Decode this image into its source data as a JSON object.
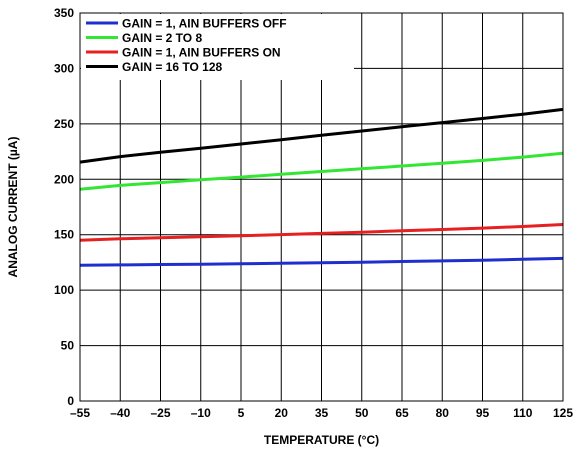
{
  "chart_data": {
    "type": "line",
    "title": "",
    "xlabel": "TEMPERATURE (°C)",
    "ylabel": "ANALOG CURRENT (µA)",
    "x_ticks": [
      "–55",
      "–40",
      "–25",
      "–10",
      "5",
      "20",
      "35",
      "50",
      "65",
      "80",
      "95",
      "110",
      "125"
    ],
    "x_tick_values": [
      -55,
      -40,
      -25,
      -10,
      5,
      20,
      35,
      50,
      65,
      80,
      95,
      110,
      125
    ],
    "y_ticks": [
      0,
      50,
      100,
      150,
      200,
      250,
      300,
      350
    ],
    "xlim": [
      -55,
      125
    ],
    "ylim": [
      0,
      350
    ],
    "grid": true,
    "legend_position": "top-left",
    "series": [
      {
        "name": "GAIN = 1, AIN BUFFERS OFF",
        "color": "#1f2fcf",
        "x": [
          -55,
          -40,
          -25,
          -10,
          5,
          20,
          35,
          50,
          65,
          80,
          95,
          110,
          125
        ],
        "y": [
          122.5,
          122.8,
          123.1,
          123.4,
          123.8,
          124.2,
          124.7,
          125.2,
          125.8,
          126.4,
          127.0,
          127.8,
          128.6
        ]
      },
      {
        "name": "GAIN = 2 TO 8",
        "color": "#33e633",
        "x": [
          -55,
          -40,
          -25,
          -10,
          5,
          20,
          35,
          50,
          65,
          80,
          95,
          110,
          125
        ],
        "y": [
          191.0,
          194.5,
          197.0,
          199.5,
          202.0,
          204.5,
          207.0,
          209.5,
          212.0,
          214.5,
          217.0,
          220.0,
          223.5
        ]
      },
      {
        "name": "GAIN = 1, AIN BUFFERS ON",
        "color": "#e62020",
        "x": [
          -55,
          -40,
          -25,
          -10,
          5,
          20,
          35,
          50,
          65,
          80,
          95,
          110,
          125
        ],
        "y": [
          145.0,
          146.3,
          147.3,
          148.2,
          149.1,
          150.1,
          151.2,
          152.3,
          153.5,
          154.7,
          156.0,
          157.4,
          159.2
        ]
      },
      {
        "name": "GAIN = 16 TO 128",
        "color": "#000000",
        "x": [
          -55,
          -40,
          -25,
          -10,
          5,
          20,
          35,
          50,
          65,
          80,
          95,
          110,
          125
        ],
        "y": [
          215.5,
          220.5,
          224.3,
          228.0,
          231.8,
          235.7,
          239.7,
          243.6,
          247.4,
          251.1,
          254.8,
          258.7,
          263.0
        ]
      }
    ]
  }
}
